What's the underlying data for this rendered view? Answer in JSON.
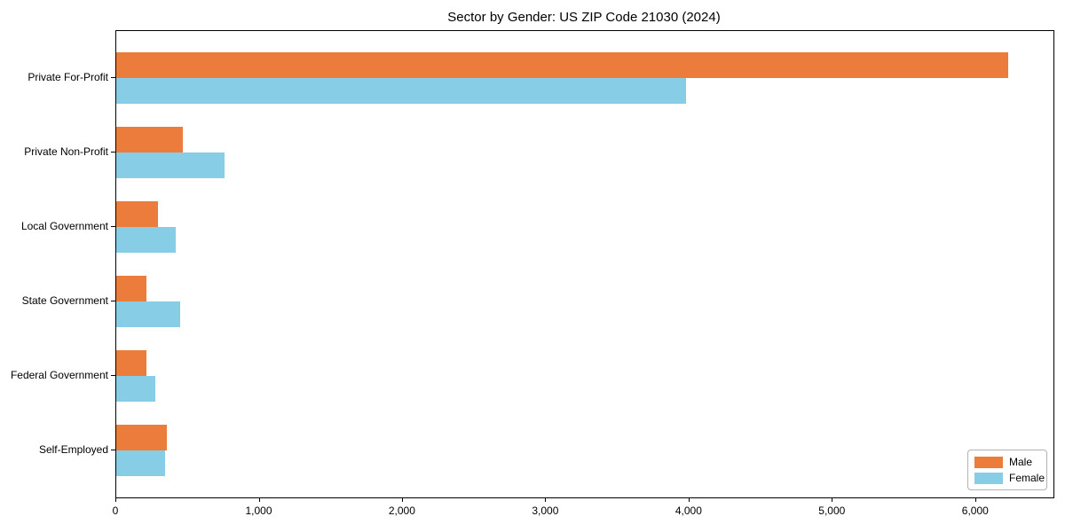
{
  "chart_data": {
    "type": "bar",
    "orientation": "horizontal",
    "title": "Sector by Gender: US ZIP Code 21030 (2024)",
    "categories": [
      "Private For-Profit",
      "Private Non-Profit",
      "Local Government",
      "State Government",
      "Federal Government",
      "Self-Employed"
    ],
    "series": [
      {
        "name": "Male",
        "color": "#EC7C3C",
        "values": [
          6225,
          465,
          290,
          210,
          210,
          350
        ]
      },
      {
        "name": "Female",
        "color": "#87CDE6",
        "values": [
          3975,
          755,
          415,
          445,
          270,
          340
        ]
      }
    ],
    "xlabel": "",
    "ylabel": "",
    "xlim": [
      0,
      6540
    ],
    "x_tick_values": [
      0,
      1000,
      2000,
      3000,
      4000,
      5000,
      6000
    ],
    "x_tick_labels": [
      "0",
      "1,000",
      "2,000",
      "3,000",
      "4,000",
      "5,000",
      "6,000"
    ],
    "grid": false,
    "legend": {
      "position": "lower right",
      "entries": [
        "Male",
        "Female"
      ]
    },
    "colors": {
      "axis": "#000000",
      "background": "#ffffff",
      "legend_border": "#b3b3b3"
    }
  }
}
